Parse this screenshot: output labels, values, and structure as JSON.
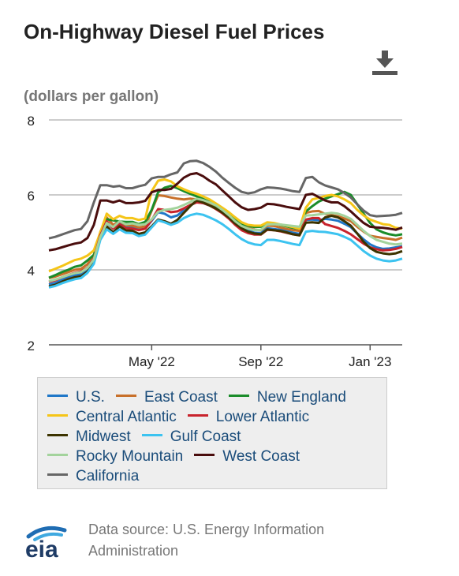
{
  "title": "On-Highway Diesel Fuel Prices",
  "subtitle": "(dollars per gallon)",
  "download_icon": "download-icon",
  "source": "Data source: U.S. Energy Information Administration",
  "logo_text": "eia",
  "chart_data": {
    "type": "line",
    "title": "On-Highway Diesel Fuel Prices",
    "ylabel": "(dollars per gallon)",
    "ylim": [
      2,
      8
    ],
    "yticks": [
      2,
      4,
      6,
      8
    ],
    "xticks": [
      {
        "label": "May '22",
        "week": 16
      },
      {
        "label": "Sep '22",
        "week": 33
      },
      {
        "label": "Jan '23",
        "week": 50
      }
    ],
    "x": [
      "2021-12-27",
      "2022-01-03",
      "2022-01-10",
      "2022-01-17",
      "2022-01-24",
      "2022-01-31",
      "2022-02-07",
      "2022-02-14",
      "2022-02-21",
      "2022-02-28",
      "2022-03-07",
      "2022-03-14",
      "2022-03-21",
      "2022-03-28",
      "2022-04-04",
      "2022-04-11",
      "2022-04-18",
      "2022-04-25",
      "2022-05-02",
      "2022-05-09",
      "2022-05-16",
      "2022-05-23",
      "2022-05-30",
      "2022-06-06",
      "2022-06-13",
      "2022-06-20",
      "2022-06-27",
      "2022-07-04",
      "2022-07-11",
      "2022-07-18",
      "2022-07-25",
      "2022-08-01",
      "2022-08-08",
      "2022-08-15",
      "2022-08-22",
      "2022-08-29",
      "2022-09-05",
      "2022-09-12",
      "2022-09-19",
      "2022-09-26",
      "2022-10-03",
      "2022-10-10",
      "2022-10-17",
      "2022-10-24",
      "2022-10-31",
      "2022-11-07",
      "2022-11-14",
      "2022-11-21",
      "2022-11-28",
      "2022-12-05",
      "2022-12-12",
      "2022-12-19",
      "2022-12-26",
      "2023-01-02",
      "2023-01-09",
      "2023-01-16"
    ],
    "legend_position": "bottom",
    "series": [
      {
        "name": "U.S.",
        "color": "#1f77c8",
        "values": [
          3.61,
          3.65,
          3.73,
          3.8,
          3.85,
          3.88,
          4.02,
          4.29,
          4.91,
          5.26,
          5.1,
          5.25,
          5.13,
          5.13,
          5.07,
          5.1,
          5.31,
          5.54,
          5.5,
          5.4,
          5.45,
          5.59,
          5.72,
          5.81,
          5.78,
          5.72,
          5.64,
          5.54,
          5.42,
          5.28,
          5.14,
          5.05,
          4.99,
          4.98,
          5.11,
          5.09,
          5.07,
          5.04,
          4.99,
          4.96,
          5.33,
          5.34,
          5.32,
          5.36,
          5.34,
          5.31,
          5.23,
          5.14,
          4.97,
          4.81,
          4.68,
          4.6,
          4.56,
          4.57,
          4.6,
          4.63
        ]
      },
      {
        "name": "East Coast",
        "color": "#c8702a",
        "values": [
          3.78,
          3.82,
          3.88,
          3.94,
          4.0,
          4.03,
          4.15,
          4.4,
          5.01,
          5.4,
          5.2,
          5.3,
          5.19,
          5.18,
          5.13,
          5.16,
          5.58,
          5.99,
          5.97,
          5.93,
          5.9,
          5.88,
          5.9,
          5.88,
          5.85,
          5.79,
          5.69,
          5.6,
          5.48,
          5.34,
          5.2,
          5.12,
          5.07,
          5.06,
          5.18,
          5.17,
          5.13,
          5.09,
          5.06,
          5.04,
          5.52,
          5.56,
          5.57,
          5.49,
          5.46,
          5.43,
          5.37,
          5.3,
          5.15,
          5.02,
          4.91,
          4.88,
          4.85,
          4.83,
          4.8,
          4.86
        ]
      },
      {
        "name": "New England",
        "color": "#1a8c2a",
        "values": [
          3.79,
          3.86,
          3.94,
          4.0,
          4.08,
          4.12,
          4.25,
          4.4,
          4.9,
          5.35,
          5.32,
          5.29,
          5.28,
          5.28,
          5.22,
          5.28,
          5.6,
          6.07,
          6.19,
          6.24,
          6.18,
          6.1,
          6.03,
          5.96,
          5.89,
          5.81,
          5.71,
          5.62,
          5.5,
          5.36,
          5.23,
          5.18,
          5.14,
          5.15,
          5.24,
          5.24,
          5.2,
          5.16,
          5.12,
          5.1,
          5.56,
          5.7,
          5.82,
          5.9,
          5.96,
          6.02,
          6.08,
          6.0,
          5.75,
          5.5,
          5.25,
          5.08,
          5.0,
          4.95,
          4.92,
          4.95
        ]
      },
      {
        "name": "Central Atlantic",
        "color": "#f5c518",
        "values": [
          3.96,
          4.03,
          4.1,
          4.18,
          4.26,
          4.3,
          4.38,
          4.52,
          5.0,
          5.5,
          5.35,
          5.44,
          5.38,
          5.38,
          5.33,
          5.37,
          6.1,
          6.38,
          6.41,
          6.36,
          6.23,
          6.15,
          6.08,
          6.03,
          5.96,
          5.88,
          5.77,
          5.66,
          5.54,
          5.4,
          5.27,
          5.2,
          5.18,
          5.18,
          5.27,
          5.25,
          5.21,
          5.18,
          5.14,
          5.1,
          5.66,
          5.88,
          5.92,
          5.97,
          6.0,
          5.96,
          5.88,
          5.78,
          5.6,
          5.45,
          5.34,
          5.28,
          5.22,
          5.2,
          5.12,
          5.1
        ]
      },
      {
        "name": "Lower Atlantic",
        "color": "#c8232c",
        "values": [
          3.68,
          3.72,
          3.8,
          3.86,
          3.92,
          3.96,
          4.06,
          4.3,
          4.92,
          5.3,
          5.1,
          5.22,
          5.11,
          5.1,
          5.06,
          5.1,
          5.33,
          5.62,
          5.6,
          5.54,
          5.56,
          5.64,
          5.73,
          5.8,
          5.78,
          5.72,
          5.62,
          5.51,
          5.37,
          5.2,
          5.06,
          4.98,
          4.94,
          4.94,
          5.07,
          5.06,
          5.03,
          4.99,
          4.95,
          4.92,
          5.34,
          5.38,
          5.38,
          5.22,
          5.17,
          5.12,
          5.04,
          4.95,
          4.82,
          4.7,
          4.6,
          4.55,
          4.52,
          4.53,
          4.56,
          4.61
        ]
      },
      {
        "name": "Midwest",
        "color": "#3c3300",
        "values": [
          3.56,
          3.6,
          3.68,
          3.75,
          3.8,
          3.83,
          3.95,
          4.2,
          4.85,
          5.16,
          5.0,
          5.16,
          5.05,
          5.04,
          4.96,
          5.0,
          5.16,
          5.34,
          5.3,
          5.23,
          5.33,
          5.52,
          5.7,
          5.85,
          5.8,
          5.72,
          5.64,
          5.53,
          5.4,
          5.24,
          5.11,
          5.02,
          4.97,
          4.95,
          5.08,
          5.06,
          5.04,
          5.0,
          4.95,
          4.92,
          5.26,
          5.27,
          5.25,
          5.4,
          5.44,
          5.4,
          5.3,
          5.18,
          4.97,
          4.75,
          4.58,
          4.48,
          4.44,
          4.42,
          4.44,
          4.5
        ]
      },
      {
        "name": "Gulf Coast",
        "color": "#3cc3f0",
        "values": [
          3.53,
          3.57,
          3.64,
          3.7,
          3.75,
          3.78,
          3.92,
          4.16,
          4.8,
          5.08,
          4.96,
          5.08,
          4.99,
          4.98,
          4.9,
          4.94,
          5.13,
          5.32,
          5.27,
          5.2,
          5.26,
          5.38,
          5.46,
          5.5,
          5.47,
          5.4,
          5.32,
          5.22,
          5.09,
          4.95,
          4.82,
          4.73,
          4.68,
          4.66,
          4.8,
          4.8,
          4.77,
          4.73,
          4.69,
          4.66,
          5.02,
          5.04,
          5.02,
          5.01,
          4.98,
          4.95,
          4.88,
          4.8,
          4.65,
          4.5,
          4.38,
          4.3,
          4.25,
          4.23,
          4.25,
          4.3
        ]
      },
      {
        "name": "Rocky Mountain",
        "color": "#a3d39c",
        "values": [
          3.7,
          3.74,
          3.8,
          3.86,
          3.91,
          3.94,
          4.05,
          4.28,
          4.88,
          5.25,
          5.14,
          5.3,
          5.22,
          5.24,
          5.2,
          5.22,
          5.35,
          5.55,
          5.6,
          5.62,
          5.66,
          5.73,
          5.81,
          5.9,
          5.86,
          5.8,
          5.72,
          5.6,
          5.46,
          5.3,
          5.17,
          5.1,
          5.06,
          5.07,
          5.21,
          5.22,
          5.21,
          5.19,
          5.17,
          5.15,
          5.45,
          5.46,
          5.48,
          5.5,
          5.52,
          5.5,
          5.44,
          5.36,
          5.2,
          5.04,
          4.9,
          4.8,
          4.75,
          4.7,
          4.68,
          4.7
        ]
      },
      {
        "name": "West Coast",
        "color": "#4a0d0d",
        "values": [
          4.52,
          4.55,
          4.6,
          4.65,
          4.7,
          4.73,
          4.85,
          5.2,
          5.85,
          5.85,
          5.8,
          5.85,
          5.78,
          5.78,
          5.8,
          5.84,
          6.07,
          6.13,
          6.13,
          6.16,
          6.3,
          6.46,
          6.55,
          6.58,
          6.5,
          6.38,
          6.28,
          6.12,
          5.96,
          5.8,
          5.67,
          5.6,
          5.62,
          5.66,
          5.76,
          5.75,
          5.72,
          5.68,
          5.65,
          5.62,
          6.0,
          6.03,
          5.94,
          5.85,
          5.8,
          5.8,
          5.7,
          5.56,
          5.4,
          5.25,
          5.15,
          5.13,
          5.12,
          5.1,
          5.07,
          5.13
        ]
      },
      {
        "name": "California",
        "color": "#666666",
        "values": [
          4.84,
          4.88,
          4.94,
          5.0,
          5.06,
          5.09,
          5.3,
          5.8,
          6.26,
          6.26,
          6.22,
          6.24,
          6.18,
          6.18,
          6.23,
          6.27,
          6.44,
          6.48,
          6.48,
          6.55,
          6.6,
          6.84,
          6.9,
          6.91,
          6.85,
          6.75,
          6.62,
          6.46,
          6.32,
          6.19,
          6.08,
          6.04,
          6.07,
          6.15,
          6.2,
          6.19,
          6.17,
          6.14,
          6.1,
          6.08,
          6.45,
          6.48,
          6.34,
          6.25,
          6.2,
          6.15,
          6.05,
          5.93,
          5.75,
          5.58,
          5.46,
          5.43,
          5.44,
          5.45,
          5.47,
          5.52
        ]
      }
    ]
  }
}
